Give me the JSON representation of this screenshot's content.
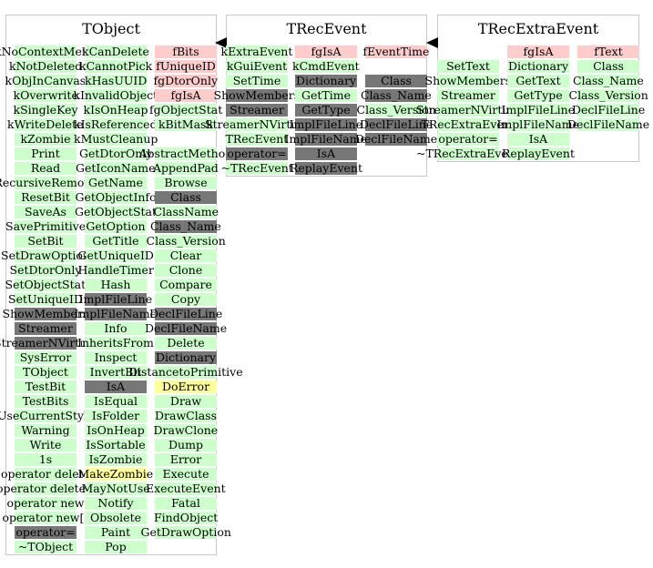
{
  "colors": {
    "method": "#ccffcc",
    "member": "#ffcccc",
    "inherited": "#777777",
    "overridden": "#ffff99",
    "border": "#c8c8c8"
  },
  "classes": [
    {
      "name": "TObject",
      "columns": [
        [
          {
            "text": "kNoContextMenu",
            "kind": "method"
          },
          {
            "text": "kNotDeleted",
            "kind": "method"
          },
          {
            "text": "kObjInCanvas",
            "kind": "method"
          },
          {
            "text": "kOverwrite",
            "kind": "method"
          },
          {
            "text": "kSingleKey",
            "kind": "method"
          },
          {
            "text": "kWriteDelete",
            "kind": "method"
          },
          {
            "text": "kZombie",
            "kind": "method"
          },
          {
            "text": "Print",
            "kind": "method"
          },
          {
            "text": "Read",
            "kind": "method"
          },
          {
            "text": "RecursiveRemove",
            "kind": "method"
          },
          {
            "text": "ResetBit",
            "kind": "method"
          },
          {
            "text": "SaveAs",
            "kind": "method"
          },
          {
            "text": "SavePrimitive",
            "kind": "method"
          },
          {
            "text": "SetBit",
            "kind": "method"
          },
          {
            "text": "SetDrawOption",
            "kind": "method"
          },
          {
            "text": "SetDtorOnly",
            "kind": "method"
          },
          {
            "text": "SetObjectStat",
            "kind": "method"
          },
          {
            "text": "SetUniqueID",
            "kind": "method"
          },
          {
            "text": "ShowMembers",
            "kind": "inherited"
          },
          {
            "text": "Streamer",
            "kind": "inherited"
          },
          {
            "text": "StreamerNVirtual",
            "kind": "inherited"
          },
          {
            "text": "SysError",
            "kind": "method"
          },
          {
            "text": "TObject",
            "kind": "method"
          },
          {
            "text": "TestBit",
            "kind": "method"
          },
          {
            "text": "TestBits",
            "kind": "method"
          },
          {
            "text": "UseCurrentStyle",
            "kind": "method"
          },
          {
            "text": "Warning",
            "kind": "method"
          },
          {
            "text": "Write",
            "kind": "method"
          },
          {
            "text": "1s",
            "kind": "method"
          },
          {
            "text": "operator delete",
            "kind": "method"
          },
          {
            "text": "operator delete[]",
            "kind": "method"
          },
          {
            "text": "operator new",
            "kind": "method"
          },
          {
            "text": "operator new[]",
            "kind": "method"
          },
          {
            "text": "operator=",
            "kind": "inherited"
          },
          {
            "text": "~TObject",
            "kind": "method"
          }
        ],
        [
          {
            "text": "kCanDelete",
            "kind": "method"
          },
          {
            "text": "kCannotPick",
            "kind": "method"
          },
          {
            "text": "kHasUUID",
            "kind": "method"
          },
          {
            "text": "kInvalidObject",
            "kind": "method"
          },
          {
            "text": "kIsOnHeap",
            "kind": "method"
          },
          {
            "text": "kIsReferenced",
            "kind": "method"
          },
          {
            "text": "kMustCleanup",
            "kind": "method"
          },
          {
            "text": "GetDtorOnly",
            "kind": "method"
          },
          {
            "text": "GetIconName",
            "kind": "method"
          },
          {
            "text": "GetName",
            "kind": "method"
          },
          {
            "text": "GetObjectInfo",
            "kind": "method"
          },
          {
            "text": "GetObjectStat",
            "kind": "method"
          },
          {
            "text": "GetOption",
            "kind": "method"
          },
          {
            "text": "GetTitle",
            "kind": "method"
          },
          {
            "text": "GetUniqueID",
            "kind": "method"
          },
          {
            "text": "HandleTimer",
            "kind": "method"
          },
          {
            "text": "Hash",
            "kind": "method"
          },
          {
            "text": "ImplFileLine",
            "kind": "inherited"
          },
          {
            "text": "ImplFileName",
            "kind": "inherited"
          },
          {
            "text": "Info",
            "kind": "method"
          },
          {
            "text": "InheritsFrom",
            "kind": "method"
          },
          {
            "text": "Inspect",
            "kind": "method"
          },
          {
            "text": "InvertBit",
            "kind": "method"
          },
          {
            "text": "IsA",
            "kind": "inherited"
          },
          {
            "text": "IsEqual",
            "kind": "method"
          },
          {
            "text": "IsFolder",
            "kind": "method"
          },
          {
            "text": "IsOnHeap",
            "kind": "method"
          },
          {
            "text": "IsSortable",
            "kind": "method"
          },
          {
            "text": "IsZombie",
            "kind": "method"
          },
          {
            "text": "MakeZombie",
            "kind": "overridden"
          },
          {
            "text": "MayNotUse",
            "kind": "method"
          },
          {
            "text": "Notify",
            "kind": "method"
          },
          {
            "text": "Obsolete",
            "kind": "method"
          },
          {
            "text": "Paint",
            "kind": "method"
          },
          {
            "text": "Pop",
            "kind": "method"
          }
        ],
        [
          {
            "text": "fBits",
            "kind": "member"
          },
          {
            "text": "fUniqueID",
            "kind": "member"
          },
          {
            "text": "fgDtorOnly",
            "kind": "member"
          },
          {
            "text": "fgIsA",
            "kind": "member"
          },
          {
            "text": "fgObjectStat",
            "kind": "method"
          },
          {
            "text": "kBitMask",
            "kind": "method"
          },
          {
            "text": "",
            "kind": "blank"
          },
          {
            "text": "AbstractMethod",
            "kind": "method"
          },
          {
            "text": "AppendPad",
            "kind": "method"
          },
          {
            "text": "Browse",
            "kind": "method"
          },
          {
            "text": "Class",
            "kind": "inherited"
          },
          {
            "text": "ClassName",
            "kind": "method"
          },
          {
            "text": "Class_Name",
            "kind": "inherited"
          },
          {
            "text": "Class_Version",
            "kind": "method"
          },
          {
            "text": "Clear",
            "kind": "method"
          },
          {
            "text": "Clone",
            "kind": "method"
          },
          {
            "text": "Compare",
            "kind": "method"
          },
          {
            "text": "Copy",
            "kind": "method"
          },
          {
            "text": "DeclFileLine",
            "kind": "inherited"
          },
          {
            "text": "DeclFileName",
            "kind": "inherited"
          },
          {
            "text": "Delete",
            "kind": "method"
          },
          {
            "text": "Dictionary",
            "kind": "inherited"
          },
          {
            "text": "DistancetoPrimitive",
            "kind": "method"
          },
          {
            "text": "DoError",
            "kind": "overridden"
          },
          {
            "text": "Draw",
            "kind": "method"
          },
          {
            "text": "DrawClass",
            "kind": "method"
          },
          {
            "text": "DrawClone",
            "kind": "method"
          },
          {
            "text": "Dump",
            "kind": "method"
          },
          {
            "text": "Error",
            "kind": "method"
          },
          {
            "text": "Execute",
            "kind": "method"
          },
          {
            "text": "ExecuteEvent",
            "kind": "method"
          },
          {
            "text": "Fatal",
            "kind": "method"
          },
          {
            "text": "FindObject",
            "kind": "method"
          },
          {
            "text": "GetDrawOption",
            "kind": "method"
          }
        ]
      ]
    },
    {
      "name": "TRecEvent",
      "columns": [
        [
          {
            "text": "kExtraEvent",
            "kind": "method"
          },
          {
            "text": "kGuiEvent",
            "kind": "method"
          },
          {
            "text": "SetTime",
            "kind": "method"
          },
          {
            "text": "ShowMembers",
            "kind": "inherited"
          },
          {
            "text": "Streamer",
            "kind": "inherited"
          },
          {
            "text": "StreamerNVirtual",
            "kind": "method"
          },
          {
            "text": "TRecEvent",
            "kind": "method"
          },
          {
            "text": "operator=",
            "kind": "inherited"
          },
          {
            "text": "~TRecEvent",
            "kind": "method"
          }
        ],
        [
          {
            "text": "fgIsA",
            "kind": "member"
          },
          {
            "text": "kCmdEvent",
            "kind": "method"
          },
          {
            "text": "Dictionary",
            "kind": "inherited"
          },
          {
            "text": "GetTime",
            "kind": "method"
          },
          {
            "text": "GetType",
            "kind": "inherited"
          },
          {
            "text": "ImplFileLine",
            "kind": "inherited"
          },
          {
            "text": "ImplFileName",
            "kind": "inherited"
          },
          {
            "text": "IsA",
            "kind": "inherited"
          },
          {
            "text": "ReplayEvent",
            "kind": "inherited"
          }
        ],
        [
          {
            "text": "fEventTime",
            "kind": "member"
          },
          {
            "text": "",
            "kind": "blank"
          },
          {
            "text": "Class",
            "kind": "inherited"
          },
          {
            "text": "Class_Name",
            "kind": "inherited"
          },
          {
            "text": "Class_Version",
            "kind": "method"
          },
          {
            "text": "DeclFileLine",
            "kind": "inherited"
          },
          {
            "text": "DeclFileName",
            "kind": "inherited"
          }
        ]
      ]
    },
    {
      "name": "TRecExtraEvent",
      "columns": [
        [
          {
            "text": "",
            "kind": "blank"
          },
          {
            "text": "SetText",
            "kind": "method"
          },
          {
            "text": "ShowMembers",
            "kind": "method"
          },
          {
            "text": "Streamer",
            "kind": "method"
          },
          {
            "text": "StreamerNVirtual",
            "kind": "method"
          },
          {
            "text": "TRecExtraEvent",
            "kind": "method"
          },
          {
            "text": "operator=",
            "kind": "method"
          },
          {
            "text": "~TRecExtraEvent",
            "kind": "method"
          }
        ],
        [
          {
            "text": "fgIsA",
            "kind": "member"
          },
          {
            "text": "Dictionary",
            "kind": "method"
          },
          {
            "text": "GetText",
            "kind": "method"
          },
          {
            "text": "GetType",
            "kind": "method"
          },
          {
            "text": "ImplFileLine",
            "kind": "method"
          },
          {
            "text": "ImplFileName",
            "kind": "method"
          },
          {
            "text": "IsA",
            "kind": "method"
          },
          {
            "text": "ReplayEvent",
            "kind": "method"
          }
        ],
        [
          {
            "text": "fText",
            "kind": "member"
          },
          {
            "text": "Class",
            "kind": "method"
          },
          {
            "text": "Class_Name",
            "kind": "method"
          },
          {
            "text": "Class_Version",
            "kind": "method"
          },
          {
            "text": "DeclFileLine",
            "kind": "method"
          },
          {
            "text": "DeclFileName",
            "kind": "method"
          }
        ]
      ]
    }
  ]
}
